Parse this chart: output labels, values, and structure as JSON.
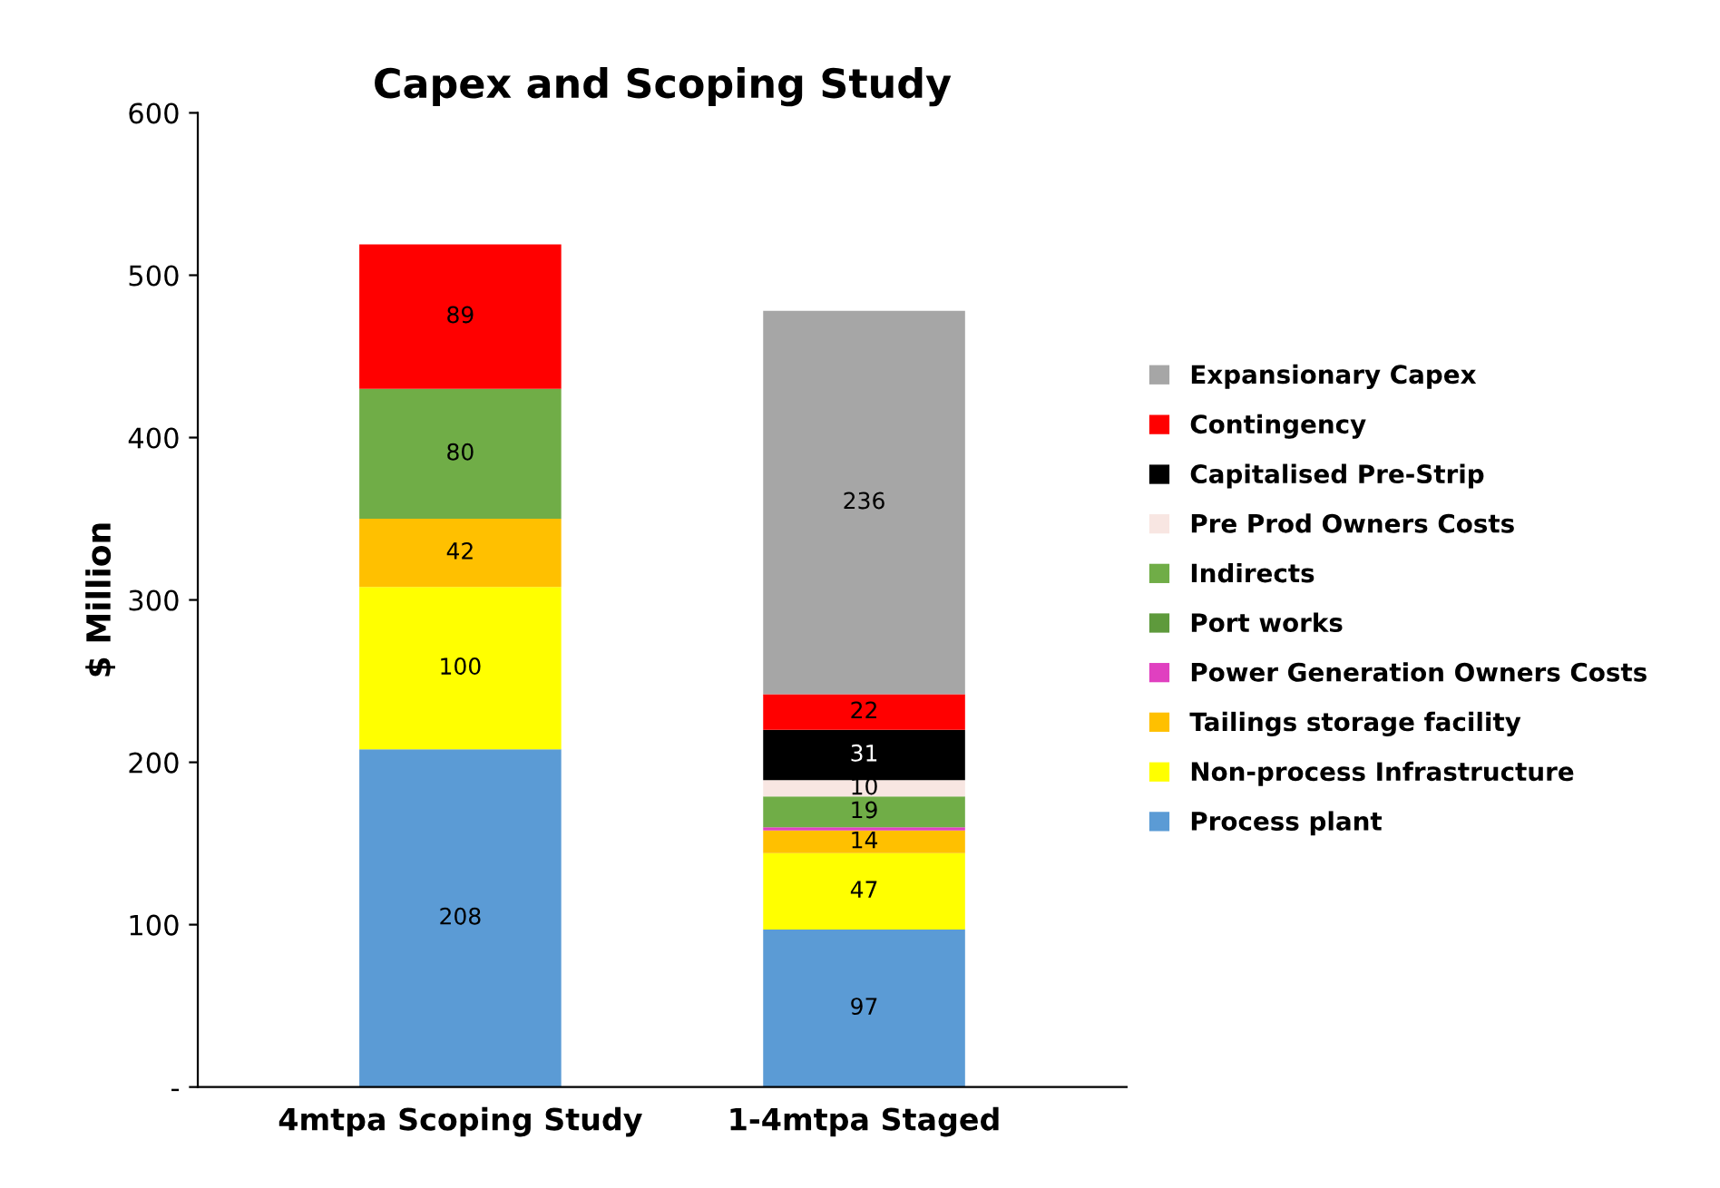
{
  "chart_data": {
    "type": "bar",
    "title": "Capex and Scoping Study",
    "ylabel": "$ Million",
    "categories": [
      "4mtpa Scoping Study",
      "1-4mtpa Staged"
    ],
    "stacked": true,
    "ylim": [
      0,
      600
    ],
    "yticks": [
      {
        "value": 0,
        "label": "-"
      },
      100,
      200,
      300,
      400,
      500,
      600
    ],
    "grid": false,
    "legend": "right",
    "series": [
      {
        "name": "Process plant",
        "color": "#5b9bd5",
        "values": [
          208,
          97
        ],
        "value_labels": [
          "208",
          "97"
        ]
      },
      {
        "name": "Non-process Infrastructure",
        "color": "#ffff00",
        "values": [
          100,
          47
        ],
        "value_labels": [
          "100",
          "47"
        ]
      },
      {
        "name": "Tailings storage facility",
        "color": "#ffc000",
        "values": [
          42,
          14
        ],
        "value_labels": [
          "42",
          "14"
        ]
      },
      {
        "name": "Power Generation Owners Costs",
        "color": "#e040c0",
        "values": [
          null,
          2
        ],
        "value_labels": [
          null,
          null
        ]
      },
      {
        "name": "Port works",
        "color": "#5e9a3c",
        "values": [
          null,
          null
        ],
        "value_labels": [
          null,
          null
        ]
      },
      {
        "name": "Indirects",
        "color": "#70ad47",
        "values": [
          80,
          19
        ],
        "value_labels": [
          "80",
          "19"
        ]
      },
      {
        "name": "Pre Prod Owners Costs",
        "color": "#f8e6e2",
        "values": [
          null,
          10
        ],
        "value_labels": [
          null,
          "10"
        ]
      },
      {
        "name": "Capitalised Pre-Strip",
        "color": "#000000",
        "values": [
          null,
          31
        ],
        "value_labels": [
          null,
          "31"
        ]
      },
      {
        "name": "Contingency",
        "color": "#ff0000",
        "values": [
          89,
          22
        ],
        "value_labels": [
          "89",
          "22"
        ]
      },
      {
        "name": "Expansionary Capex",
        "color": "#a6a6a6",
        "values": [
          null,
          236
        ],
        "value_labels": [
          null,
          "236"
        ]
      }
    ]
  }
}
